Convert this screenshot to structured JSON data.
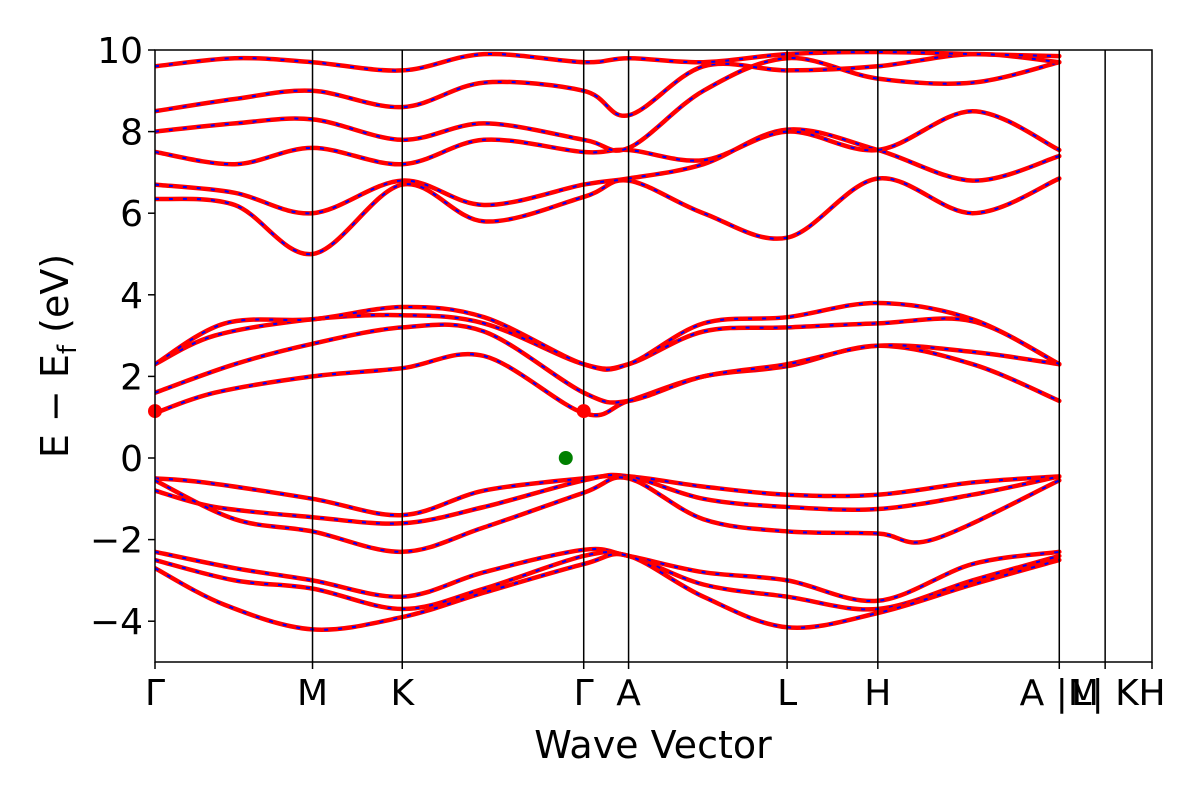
{
  "chart_data": {
    "type": "line",
    "title": "",
    "xlabel": "Wave Vector",
    "ylabel": "E − E",
    "ylabel_subscript": "f",
    "ylabel_unit": "(eV)",
    "ylim": [
      -5,
      10
    ],
    "yticks": [
      10,
      8,
      6,
      4,
      2,
      0,
      -2,
      -4
    ],
    "ytick_labels": [
      "10",
      "8",
      "6",
      "4",
      "2",
      "0",
      "−2",
      "−4"
    ],
    "xlim": [
      0,
      1
    ],
    "kpoints": [
      {
        "label": "Γ",
        "x": 0.0
      },
      {
        "label": "M",
        "x": 0.158
      },
      {
        "label": "K",
        "x": 0.248
      },
      {
        "label": "Γ",
        "x": 0.43
      },
      {
        "label": "A",
        "x": 0.475
      },
      {
        "label": "L",
        "x": 0.634
      },
      {
        "label": "H",
        "x": 0.725
      },
      {
        "label": "A |M",
        "x": 0.907
      },
      {
        "label": "L| K",
        "x": 0.953
      },
      {
        "label": "H",
        "x": 1.0
      }
    ],
    "series": [
      {
        "values": [
          [
            0.0,
            -0.5
          ],
          [
            0.05,
            -0.6
          ],
          [
            0.158,
            -1.0
          ],
          [
            0.248,
            -1.4
          ],
          [
            0.33,
            -0.8
          ],
          [
            0.43,
            -0.5
          ],
          [
            0.475,
            -0.45
          ],
          [
            0.55,
            -0.7
          ],
          [
            0.634,
            -0.9
          ],
          [
            0.725,
            -0.9
          ],
          [
            0.82,
            -0.6
          ],
          [
            0.907,
            -0.45
          ]
        ]
      },
      {
        "values": [
          [
            0.0,
            -0.8
          ],
          [
            0.06,
            -1.2
          ],
          [
            0.158,
            -1.45
          ],
          [
            0.248,
            -1.6
          ],
          [
            0.33,
            -1.2
          ],
          [
            0.43,
            -0.55
          ],
          [
            0.475,
            -0.45
          ],
          [
            0.55,
            -1.0
          ],
          [
            0.634,
            -1.2
          ],
          [
            0.725,
            -1.25
          ],
          [
            0.82,
            -0.9
          ],
          [
            0.907,
            -0.45
          ]
        ]
      },
      {
        "values": [
          [
            0.0,
            -0.55
          ],
          [
            0.08,
            -1.5
          ],
          [
            0.158,
            -1.8
          ],
          [
            0.248,
            -2.3
          ],
          [
            0.33,
            -1.7
          ],
          [
            0.43,
            -0.85
          ],
          [
            0.475,
            -0.5
          ],
          [
            0.55,
            -1.5
          ],
          [
            0.634,
            -1.8
          ],
          [
            0.725,
            -1.85
          ],
          [
            0.78,
            -2.0
          ],
          [
            0.907,
            -0.55
          ]
        ]
      },
      {
        "values": [
          [
            0.0,
            -2.3
          ],
          [
            0.08,
            -2.7
          ],
          [
            0.158,
            -3.0
          ],
          [
            0.248,
            -3.4
          ],
          [
            0.33,
            -2.8
          ],
          [
            0.43,
            -2.25
          ],
          [
            0.475,
            -2.4
          ],
          [
            0.55,
            -2.8
          ],
          [
            0.634,
            -3.0
          ],
          [
            0.725,
            -3.5
          ],
          [
            0.82,
            -2.6
          ],
          [
            0.907,
            -2.3
          ]
        ]
      },
      {
        "values": [
          [
            0.0,
            -2.5
          ],
          [
            0.08,
            -3.0
          ],
          [
            0.158,
            -3.2
          ],
          [
            0.248,
            -3.7
          ],
          [
            0.33,
            -3.2
          ],
          [
            0.43,
            -2.4
          ],
          [
            0.475,
            -2.4
          ],
          [
            0.55,
            -3.1
          ],
          [
            0.634,
            -3.4
          ],
          [
            0.725,
            -3.7
          ],
          [
            0.82,
            -3.0
          ],
          [
            0.907,
            -2.4
          ]
        ]
      },
      {
        "values": [
          [
            0.0,
            -2.7
          ],
          [
            0.07,
            -3.6
          ],
          [
            0.158,
            -4.2
          ],
          [
            0.248,
            -3.9
          ],
          [
            0.33,
            -3.3
          ],
          [
            0.43,
            -2.6
          ],
          [
            0.475,
            -2.4
          ],
          [
            0.55,
            -3.4
          ],
          [
            0.634,
            -4.15
          ],
          [
            0.725,
            -3.8
          ],
          [
            0.82,
            -3.1
          ],
          [
            0.907,
            -2.5
          ]
        ]
      },
      {
        "values": [
          [
            0.0,
            1.1
          ],
          [
            0.06,
            1.6
          ],
          [
            0.158,
            2.0
          ],
          [
            0.248,
            2.2
          ],
          [
            0.33,
            2.5
          ],
          [
            0.43,
            1.1
          ],
          [
            0.475,
            1.4
          ],
          [
            0.55,
            2.0
          ],
          [
            0.634,
            2.25
          ],
          [
            0.725,
            2.75
          ],
          [
            0.82,
            2.3
          ],
          [
            0.907,
            1.4
          ]
        ]
      },
      {
        "values": [
          [
            0.0,
            1.6
          ],
          [
            0.08,
            2.3
          ],
          [
            0.158,
            2.8
          ],
          [
            0.248,
            3.2
          ],
          [
            0.33,
            3.1
          ],
          [
            0.43,
            1.6
          ],
          [
            0.475,
            1.4
          ],
          [
            0.55,
            2.0
          ],
          [
            0.634,
            2.3
          ],
          [
            0.725,
            2.75
          ],
          [
            0.82,
            2.6
          ],
          [
            0.907,
            2.3
          ]
        ]
      },
      {
        "values": [
          [
            0.0,
            2.3
          ],
          [
            0.06,
            3.0
          ],
          [
            0.158,
            3.4
          ],
          [
            0.248,
            3.5
          ],
          [
            0.33,
            3.3
          ],
          [
            0.43,
            2.3
          ],
          [
            0.475,
            2.3
          ],
          [
            0.55,
            3.1
          ],
          [
            0.634,
            3.2
          ],
          [
            0.725,
            3.3
          ],
          [
            0.82,
            3.35
          ],
          [
            0.907,
            2.3
          ]
        ]
      },
      {
        "values": [
          [
            0.0,
            2.3
          ],
          [
            0.07,
            3.3
          ],
          [
            0.158,
            3.4
          ],
          [
            0.248,
            3.7
          ],
          [
            0.33,
            3.45
          ],
          [
            0.43,
            2.3
          ],
          [
            0.475,
            2.3
          ],
          [
            0.55,
            3.3
          ],
          [
            0.634,
            3.45
          ],
          [
            0.725,
            3.8
          ],
          [
            0.82,
            3.4
          ],
          [
            0.907,
            2.3
          ]
        ]
      },
      {
        "values": [
          [
            0.0,
            6.35
          ],
          [
            0.08,
            6.2
          ],
          [
            0.158,
            5.0
          ],
          [
            0.248,
            6.7
          ],
          [
            0.33,
            5.8
          ],
          [
            0.43,
            6.4
          ],
          [
            0.475,
            6.8
          ],
          [
            0.55,
            6.0
          ],
          [
            0.634,
            5.4
          ],
          [
            0.725,
            6.85
          ],
          [
            0.82,
            6.0
          ],
          [
            0.907,
            6.85
          ]
        ]
      },
      {
        "values": [
          [
            0.0,
            6.7
          ],
          [
            0.08,
            6.5
          ],
          [
            0.158,
            6.0
          ],
          [
            0.248,
            6.8
          ],
          [
            0.33,
            6.2
          ],
          [
            0.43,
            6.7
          ],
          [
            0.475,
            6.85
          ],
          [
            0.55,
            7.2
          ],
          [
            0.634,
            8.05
          ],
          [
            0.725,
            7.55
          ],
          [
            0.82,
            6.8
          ],
          [
            0.907,
            7.4
          ]
        ]
      },
      {
        "values": [
          [
            0.0,
            7.5
          ],
          [
            0.08,
            7.2
          ],
          [
            0.158,
            7.6
          ],
          [
            0.248,
            7.2
          ],
          [
            0.33,
            7.8
          ],
          [
            0.43,
            7.5
          ],
          [
            0.475,
            7.55
          ],
          [
            0.55,
            7.3
          ],
          [
            0.634,
            8.0
          ],
          [
            0.725,
            7.55
          ],
          [
            0.82,
            8.5
          ],
          [
            0.907,
            7.55
          ]
        ]
      },
      {
        "values": [
          [
            0.0,
            8.0
          ],
          [
            0.08,
            8.2
          ],
          [
            0.158,
            8.3
          ],
          [
            0.248,
            7.8
          ],
          [
            0.33,
            8.2
          ],
          [
            0.43,
            7.8
          ],
          [
            0.475,
            7.6
          ],
          [
            0.55,
            9.0
          ],
          [
            0.634,
            9.8
          ],
          [
            0.725,
            9.3
          ],
          [
            0.82,
            9.2
          ],
          [
            0.907,
            9.7
          ]
        ]
      },
      {
        "values": [
          [
            0.0,
            8.5
          ],
          [
            0.08,
            8.8
          ],
          [
            0.158,
            9.0
          ],
          [
            0.248,
            8.6
          ],
          [
            0.33,
            9.2
          ],
          [
            0.43,
            9.0
          ],
          [
            0.475,
            8.4
          ],
          [
            0.55,
            9.6
          ],
          [
            0.634,
            9.5
          ],
          [
            0.725,
            9.6
          ],
          [
            0.82,
            9.9
          ],
          [
            0.907,
            9.7
          ]
        ]
      },
      {
        "values": [
          [
            0.0,
            9.6
          ],
          [
            0.08,
            9.8
          ],
          [
            0.158,
            9.7
          ],
          [
            0.248,
            9.5
          ],
          [
            0.33,
            9.9
          ],
          [
            0.43,
            9.7
          ],
          [
            0.475,
            9.8
          ],
          [
            0.55,
            9.7
          ],
          [
            0.634,
            9.9
          ],
          [
            0.725,
            9.95
          ],
          [
            0.82,
            9.9
          ],
          [
            0.907,
            9.85
          ]
        ]
      }
    ],
    "markers": [
      {
        "x": 0.0,
        "y": 1.15,
        "color": "#ff0000"
      },
      {
        "x": 0.43,
        "y": 1.15,
        "color": "#ff0000"
      },
      {
        "x": 0.412,
        "y": 0.0,
        "color": "#008000"
      }
    ],
    "line_colors": {
      "solid": "#ff0000",
      "dash": "#0000ff"
    },
    "grid": false,
    "legend": "none"
  }
}
